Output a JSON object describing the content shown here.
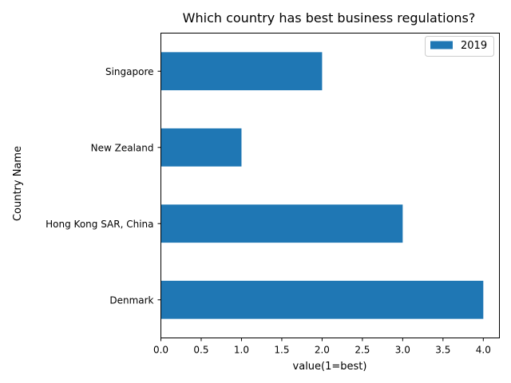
{
  "chart_data": {
    "type": "bar",
    "orientation": "horizontal",
    "title": "Which country has best business regulations?",
    "xlabel": "value(1=best)",
    "ylabel": "Country Name",
    "categories": [
      "Denmark",
      "Hong Kong SAR, China",
      "New Zealand",
      "Singapore"
    ],
    "series": [
      {
        "name": "2019",
        "values": [
          4,
          3,
          1,
          2
        ],
        "color": "#1f77b4"
      }
    ],
    "xlim": [
      0,
      4.2
    ],
    "xticks": [
      "0.0",
      "0.5",
      "1.0",
      "1.5",
      "2.0",
      "2.5",
      "3.0",
      "3.5",
      "4.0"
    ],
    "grid": false,
    "legend": "top-right"
  }
}
